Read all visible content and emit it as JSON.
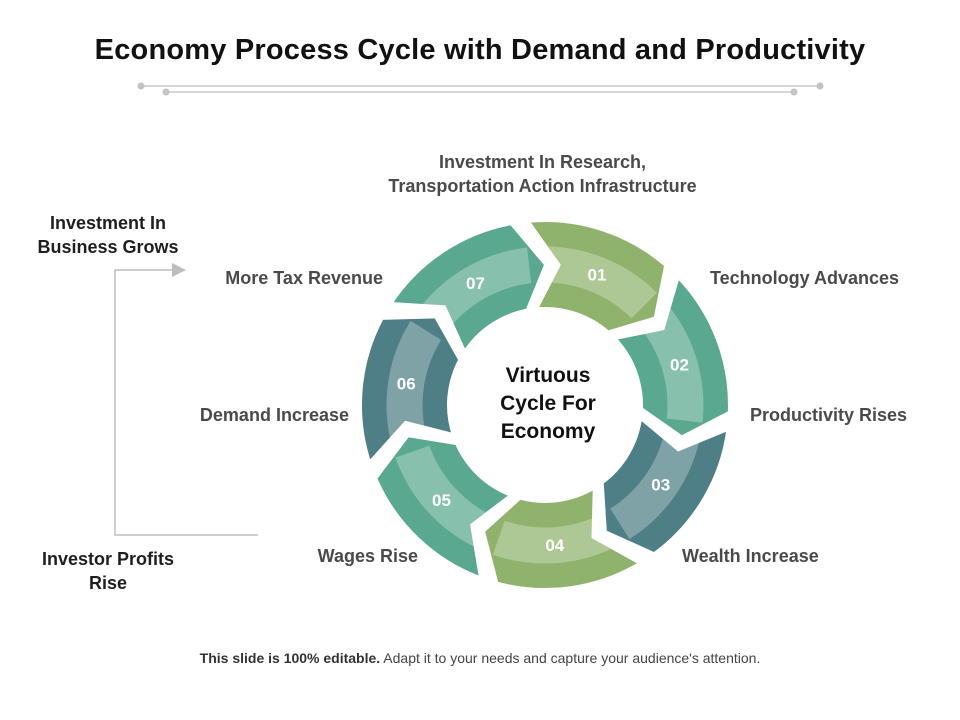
{
  "title": "Economy Process Cycle with Demand and Productivity",
  "center": {
    "line1": "Virtuous",
    "line2": "Cycle For",
    "line3": "Economy"
  },
  "segments": [
    {
      "num": "01",
      "label": "Technology Advances",
      "color": "#8fb36c"
    },
    {
      "num": "02",
      "label": "Productivity Rises",
      "color": "#5aa88f"
    },
    {
      "num": "03",
      "label": "Wealth Increase",
      "color": "#4e7f86"
    },
    {
      "num": "04",
      "label": "Wages Rise",
      "color": "#8fb36c"
    },
    {
      "num": "05",
      "label": "Demand Increase",
      "color": "#5aa88f"
    },
    {
      "num": "06",
      "label": "More Tax Revenue",
      "color": "#4e7f86"
    },
    {
      "num": "07",
      "label_line1": "Investment In Research,",
      "label_line2": "Transportation Action Infrastructure",
      "color": "#5aa88f"
    }
  ],
  "side": {
    "top_line1": "Investment In",
    "top_line2": "Business Grows",
    "bottom_line1": "Investor Profits",
    "bottom_line2": "Rise"
  },
  "footer": {
    "bold": "This slide is 100% editable.",
    "rest": " Adapt it to your needs and capture your audience's attention."
  }
}
